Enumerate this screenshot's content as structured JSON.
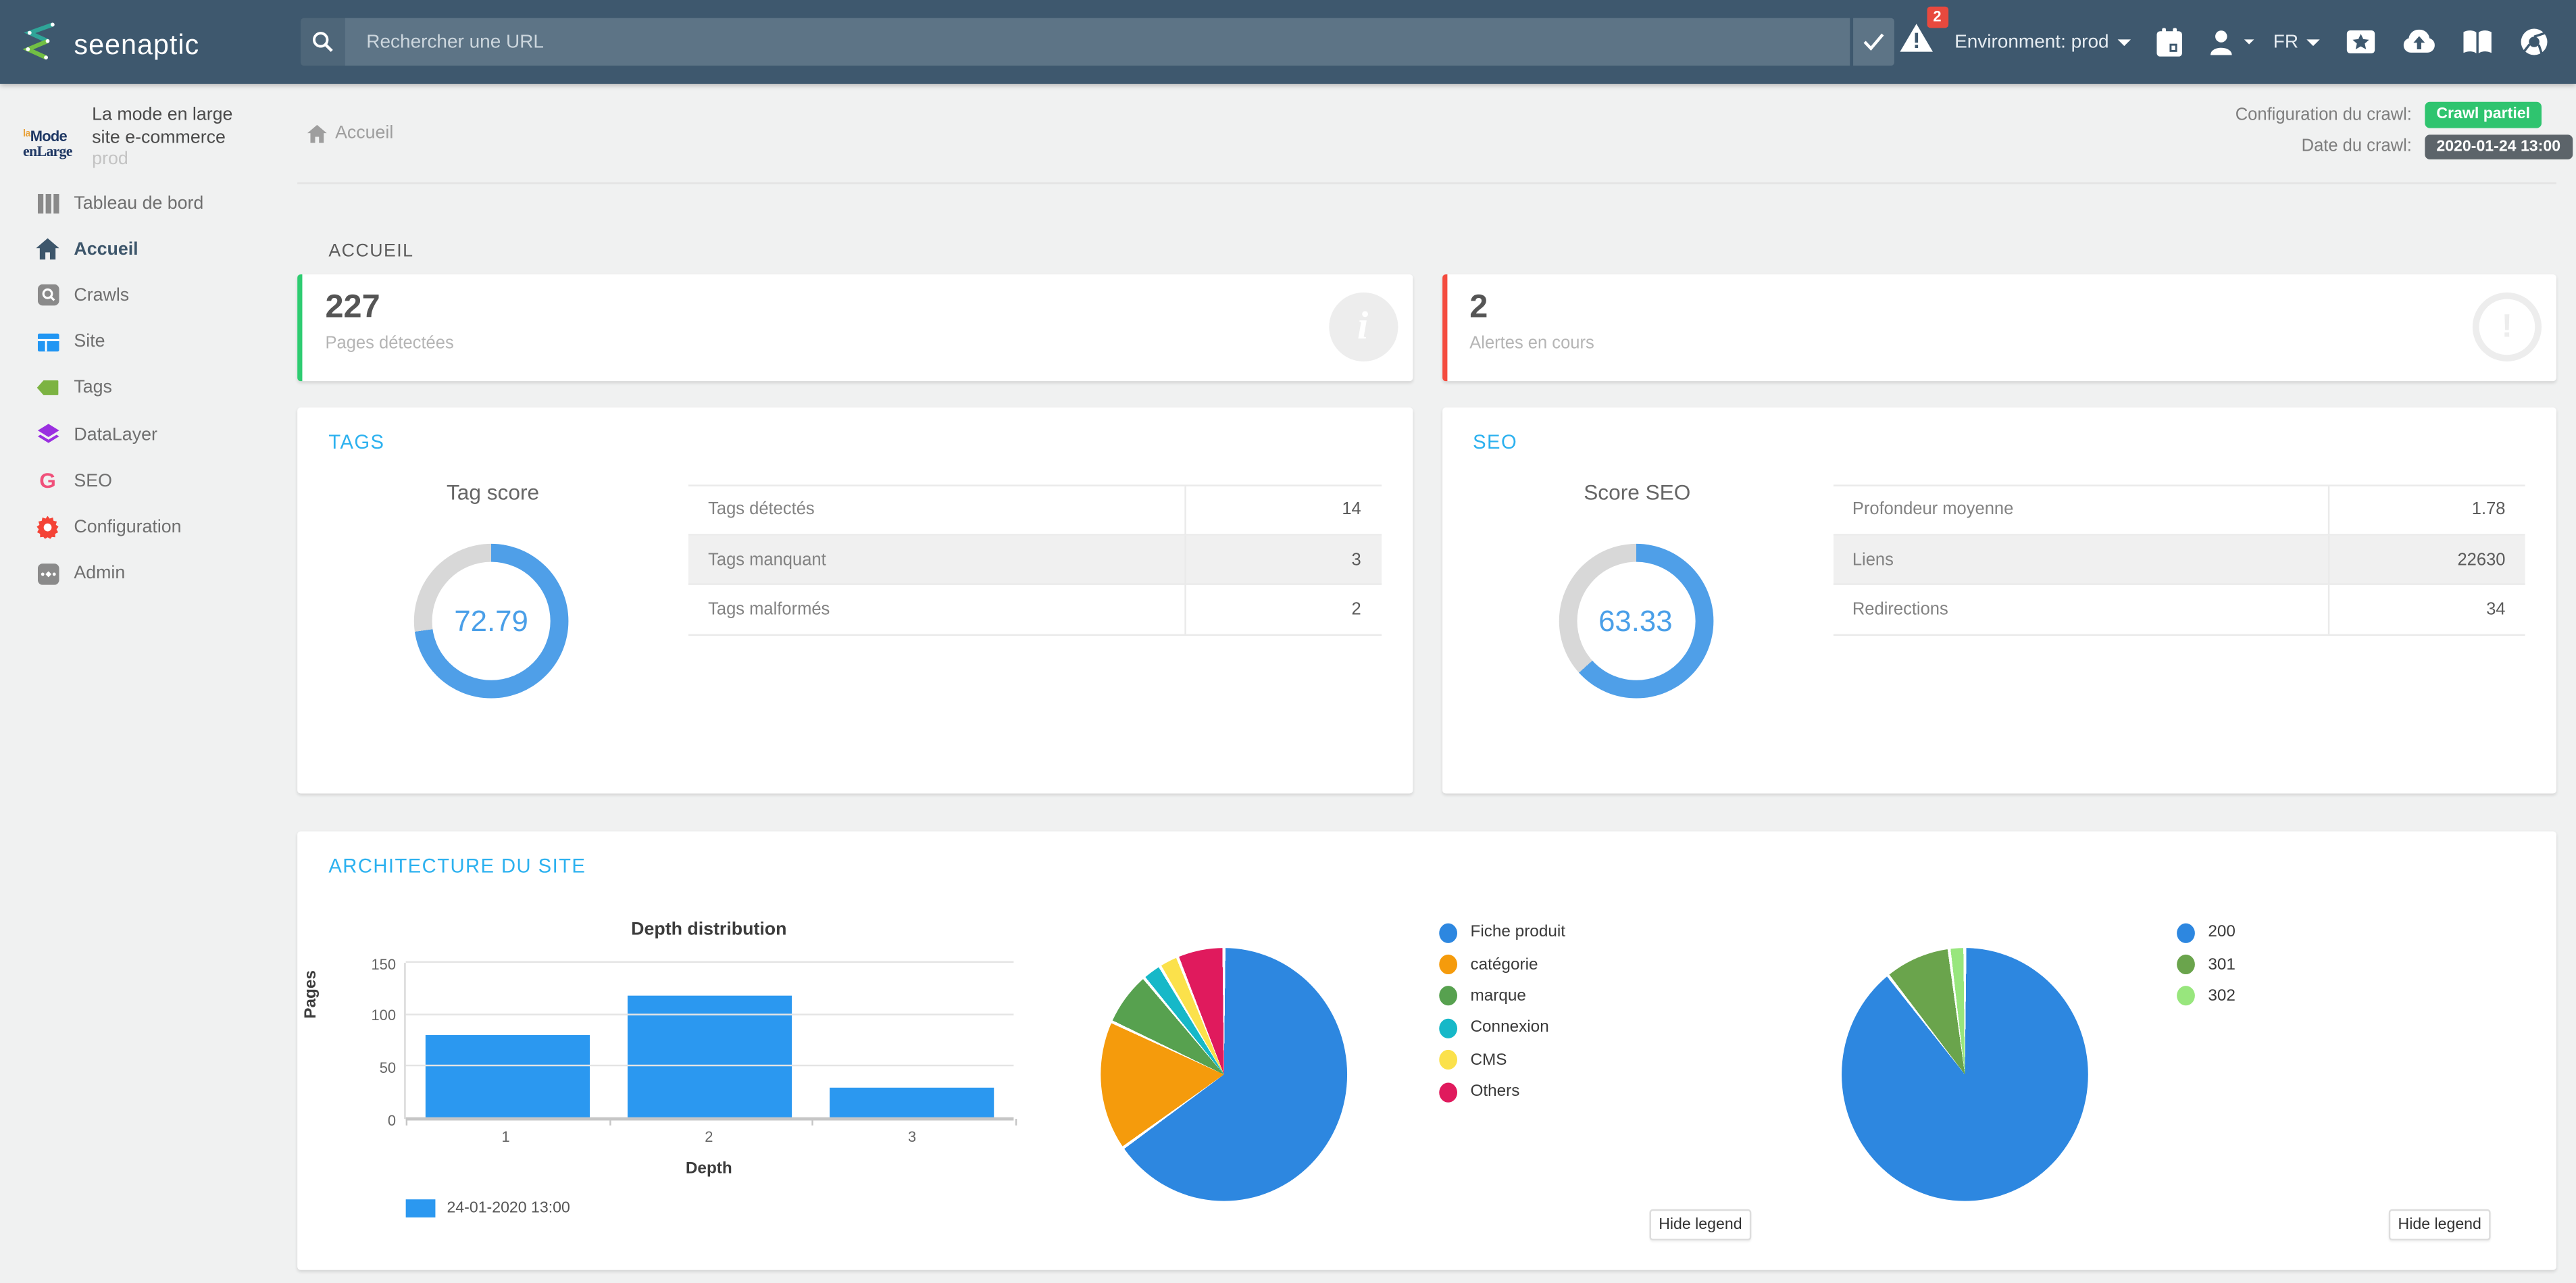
{
  "navbar": {
    "brand": "seenaptic",
    "search": {
      "placeholder": "Rechercher une URL"
    },
    "alerts_badge": "2",
    "environment_label": "Environment: prod",
    "language_label": "FR"
  },
  "sidebar": {
    "logo": {
      "line1_small": "la",
      "line1": "Mode",
      "line2": "enLarge"
    },
    "project_name": "La mode en large",
    "project_type": "site e-commerce",
    "project_env": "prod",
    "items": [
      {
        "label": "Tableau de bord"
      },
      {
        "label": "Accueil",
        "active": true
      },
      {
        "label": "Crawls"
      },
      {
        "label": "Site"
      },
      {
        "label": "Tags"
      },
      {
        "label": "DataLayer"
      },
      {
        "label": "SEO"
      },
      {
        "label": "Configuration"
      },
      {
        "label": "Admin"
      }
    ]
  },
  "breadcrumb": {
    "home": "Accueil"
  },
  "crawl_info": {
    "config_label": "Configuration du crawl:",
    "config_value": "Crawl partiel",
    "date_label": "Date du crawl:",
    "date_value": "2020-01-24 13:00",
    "config_badge_color": "#2fc46f",
    "date_badge_color": "#5c646a"
  },
  "accueil": {
    "section_title": "ACCUEIL",
    "cards": [
      {
        "value": "227",
        "label": "Pages détectées",
        "accent": "#2ecc71"
      },
      {
        "value": "2",
        "label": "Alertes en cours",
        "accent": "#f44b3e"
      }
    ]
  },
  "tags_card": {
    "title": "TAGS",
    "rows": [
      {
        "label": "Tags détectés",
        "value": "14"
      },
      {
        "label": "Tags manquant",
        "value": "3",
        "highlight": true
      },
      {
        "label": "Tags malformés",
        "value": "2"
      }
    ]
  },
  "seo_card": {
    "title": "SEO",
    "rows": [
      {
        "label": "Profondeur moyenne",
        "value": "1.78"
      },
      {
        "label": "Liens",
        "value": "22630",
        "highlight": true
      },
      {
        "label": "Redirections",
        "value": "34"
      }
    ]
  },
  "architecture": {
    "title": "ARCHITECTURE DU SITE",
    "hide_legend_label": "Hide legend"
  },
  "chart_data": [
    {
      "type": "donut",
      "title": "Tag score",
      "value": 72.79,
      "color": "#4f9fe8",
      "track": "#d8d8d8"
    },
    {
      "type": "donut",
      "title": "Score SEO",
      "value": 63.33,
      "color": "#4f9fe8",
      "track": "#d8d8d8"
    },
    {
      "type": "bar",
      "title": "Depth distribution",
      "xlabel": "Depth",
      "ylabel": "Pages",
      "categories": [
        "1",
        "2",
        "3"
      ],
      "values": [
        80,
        118,
        30
      ],
      "ylim": [
        0,
        150
      ],
      "yticks": [
        0,
        50,
        100,
        150
      ],
      "series_color": "#2b98f0",
      "grid": true,
      "legend": [
        {
          "label": "24-01-2020 13:00",
          "color": "#2b98f0"
        }
      ],
      "legend_position": "bottom-left"
    },
    {
      "type": "pie",
      "slices": [
        {
          "label": "Fiche produit",
          "value": 65,
          "color": "#2d87e0"
        },
        {
          "label": "catégorie",
          "value": 17,
          "color": "#f59b0c"
        },
        {
          "label": "marque",
          "value": 7,
          "color": "#57a14f"
        },
        {
          "label": "Connexion",
          "value": 2.5,
          "color": "#16b8c8"
        },
        {
          "label": "CMS",
          "value": 2.5,
          "color": "#fbe14b"
        },
        {
          "label": "Others",
          "value": 6,
          "color": "#e01a5d"
        }
      ],
      "legend_position": "right"
    },
    {
      "type": "pie",
      "slices": [
        {
          "label": "200",
          "value": 89.5,
          "color": "#2d87e0"
        },
        {
          "label": "301",
          "value": 8.5,
          "color": "#6aa44c"
        },
        {
          "label": "302",
          "value": 2,
          "color": "#98e67d"
        }
      ],
      "legend_position": "right"
    }
  ]
}
